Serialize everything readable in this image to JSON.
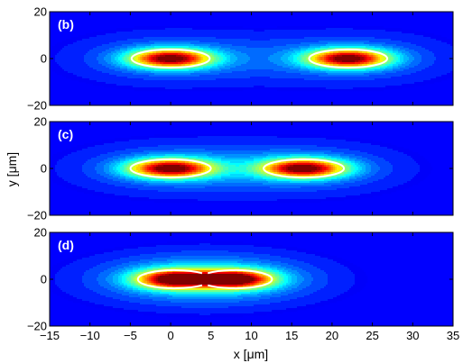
{
  "chart_data": {
    "type": "heatmap",
    "xlabel": "x [μm]",
    "ylabel": "y [μm]",
    "xlim": [
      -15,
      35
    ],
    "ylim": [
      -20,
      20
    ],
    "x_ticks": [
      "−15",
      "−10",
      "−5",
      "0",
      "5",
      "10",
      "15",
      "20",
      "25",
      "30",
      "35"
    ],
    "x_tick_values": [
      -15,
      -10,
      -5,
      0,
      5,
      10,
      15,
      20,
      25,
      30,
      35
    ],
    "y_ticks": [
      "−20",
      "0",
      "20"
    ],
    "y_tick_values": [
      -20,
      0,
      20
    ],
    "colormap": "jet",
    "background_color": "#0000ff",
    "contour_color": "#ffffff",
    "panels": [
      {
        "label": "(b)",
        "peaks": [
          {
            "x": 0,
            "y": 0,
            "sx": 3.5,
            "sy": 2.8
          },
          {
            "x": 22,
            "y": 0,
            "sx": 3.5,
            "sy": 2.8
          }
        ],
        "halo_sx": 8.5,
        "halo_sy": 7.5,
        "contour_level": 0.42,
        "contour_closed": true
      },
      {
        "label": "(c)",
        "peaks": [
          {
            "x": 0,
            "y": 0,
            "sx": 3.6,
            "sy": 2.8
          },
          {
            "x": 16.5,
            "y": 0,
            "sx": 3.6,
            "sy": 2.8
          }
        ],
        "halo_sx": 8.5,
        "halo_sy": 7.5,
        "contour_level": 0.42,
        "contour_closed": true
      },
      {
        "label": "(d)",
        "peaks": [
          {
            "x": 0.5,
            "y": 0,
            "sx": 3.3,
            "sy": 2.8
          },
          {
            "x": 8,
            "y": 0,
            "sx": 3.3,
            "sy": 2.8
          }
        ],
        "halo_sx": 8.5,
        "halo_sy": 7.5,
        "contour_level": 0.42,
        "contour_closed": false
      }
    ]
  }
}
